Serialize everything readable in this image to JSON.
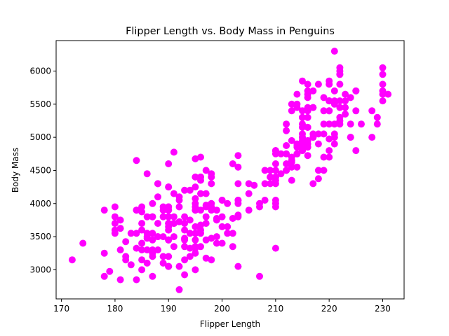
{
  "chart_data": {
    "type": "scatter",
    "title": "Flipper Length vs. Body Mass in Penguins",
    "xlabel": "Flipper Length",
    "ylabel": "Body Mass",
    "xlim": [
      169,
      234
    ],
    "ylim": [
      2560,
      6460
    ],
    "xticks": [
      170,
      180,
      190,
      200,
      210,
      220,
      230
    ],
    "yticks": [
      3000,
      3500,
      4000,
      4500,
      5000,
      5500,
      6000
    ],
    "grid": false,
    "legend": null,
    "marker_color": "#ff00ff",
    "marker_size": 8,
    "points": [
      [
        181,
        3750
      ],
      [
        186,
        3800
      ],
      [
        195,
        3250
      ],
      [
        193,
        3450
      ],
      [
        190,
        3650
      ],
      [
        181,
        3625
      ],
      [
        195,
        4675
      ],
      [
        193,
        3475
      ],
      [
        190,
        4250
      ],
      [
        186,
        3300
      ],
      [
        180,
        3700
      ],
      [
        182,
        3200
      ],
      [
        191,
        3800
      ],
      [
        198,
        4400
      ],
      [
        185,
        3700
      ],
      [
        195,
        3450
      ],
      [
        197,
        4500
      ],
      [
        184,
        3325
      ],
      [
        194,
        4200
      ],
      [
        174,
        3400
      ],
      [
        180,
        3600
      ],
      [
        189,
        3800
      ],
      [
        185,
        3950
      ],
      [
        180,
        3800
      ],
      [
        187,
        3800
      ],
      [
        183,
        3550
      ],
      [
        187,
        3200
      ],
      [
        172,
        3150
      ],
      [
        180,
        3950
      ],
      [
        178,
        3250
      ],
      [
        178,
        3900
      ],
      [
        188,
        3300
      ],
      [
        184,
        3900
      ],
      [
        195,
        3325
      ],
      [
        196,
        4150
      ],
      [
        190,
        3950
      ],
      [
        180,
        3550
      ],
      [
        181,
        3300
      ],
      [
        184,
        4650
      ],
      [
        182,
        3150
      ],
      [
        195,
        3900
      ],
      [
        186,
        3100
      ],
      [
        196,
        4400
      ],
      [
        185,
        3000
      ],
      [
        190,
        4600
      ],
      [
        182,
        3425
      ],
      [
        179,
        2975
      ],
      [
        190,
        3450
      ],
      [
        191,
        4150
      ],
      [
        186,
        3500
      ],
      [
        188,
        4300
      ],
      [
        190,
        3450
      ],
      [
        200,
        4050
      ],
      [
        187,
        2900
      ],
      [
        191,
        3700
      ],
      [
        186,
        3550
      ],
      [
        193,
        3800
      ],
      [
        181,
        2850
      ],
      [
        194,
        3750
      ],
      [
        185,
        3150
      ],
      [
        195,
        4400
      ],
      [
        185,
        3600
      ],
      [
        192,
        4050
      ],
      [
        184,
        2850
      ],
      [
        192,
        3950
      ],
      [
        195,
        3350
      ],
      [
        188,
        4100
      ],
      [
        190,
        3050
      ],
      [
        198,
        4450
      ],
      [
        190,
        3600
      ],
      [
        190,
        3900
      ],
      [
        196,
        3550
      ],
      [
        197,
        4150
      ],
      [
        190,
        3700
      ],
      [
        195,
        4250
      ],
      [
        191,
        3700
      ],
      [
        184,
        3900
      ],
      [
        187,
        3550
      ],
      [
        195,
        4000
      ],
      [
        189,
        3200
      ],
      [
        196,
        4700
      ],
      [
        187,
        3800
      ],
      [
        193,
        4200
      ],
      [
        191,
        3350
      ],
      [
        194,
        3550
      ],
      [
        190,
        3800
      ],
      [
        189,
        3500
      ],
      [
        189,
        3950
      ],
      [
        190,
        3600
      ],
      [
        202,
        3550
      ],
      [
        205,
        4300
      ],
      [
        185,
        3400
      ],
      [
        186,
        4450
      ],
      [
        187,
        3300
      ],
      [
        208,
        4300
      ],
      [
        190,
        3700
      ],
      [
        196,
        4350
      ],
      [
        178,
        2900
      ],
      [
        192,
        4100
      ],
      [
        192,
        3725
      ],
      [
        203,
        4725
      ],
      [
        183,
        3075
      ],
      [
        190,
        4250
      ],
      [
        193,
        2925
      ],
      [
        184,
        3550
      ],
      [
        199,
        3750
      ],
      [
        190,
        3900
      ],
      [
        197,
        3175
      ],
      [
        191,
        4775
      ],
      [
        203,
        3825
      ],
      [
        202,
        4600
      ],
      [
        194,
        3200
      ],
      [
        206,
        4275
      ],
      [
        189,
        3900
      ],
      [
        195,
        4075
      ],
      [
        207,
        2900
      ],
      [
        202,
        3775
      ],
      [
        193,
        3350
      ],
      [
        210,
        3325
      ],
      [
        198,
        3150
      ],
      [
        188,
        3500
      ],
      [
        190,
        3450
      ],
      [
        185,
        3875
      ],
      [
        190,
        3050
      ],
      [
        201,
        4000
      ],
      [
        187,
        3275
      ],
      [
        188,
        4300
      ],
      [
        203,
        3050
      ],
      [
        187,
        4000
      ],
      [
        194,
        3325
      ],
      [
        191,
        3500
      ],
      [
        190,
        3200
      ],
      [
        188,
        3500
      ],
      [
        189,
        3100
      ],
      [
        186,
        3475
      ],
      [
        193,
        3150
      ],
      [
        191,
        3700
      ],
      [
        192,
        3050
      ],
      [
        198,
        3475
      ],
      [
        190,
        3050
      ],
      [
        185,
        3300
      ],
      [
        195,
        3550
      ],
      [
        190,
        3950
      ],
      [
        195,
        3900
      ],
      [
        199,
        3500
      ],
      [
        211,
        4450
      ],
      [
        217,
        5700
      ],
      [
        221,
        6300
      ],
      [
        216,
        5700
      ],
      [
        230,
        5800
      ],
      [
        209,
        4400
      ],
      [
        215,
        5400
      ],
      [
        210,
        4750
      ],
      [
        209,
        4300
      ],
      [
        214,
        5650
      ],
      [
        209,
        4500
      ],
      [
        214,
        5500
      ],
      [
        216,
        5150
      ],
      [
        213,
        4650
      ],
      [
        215,
        5200
      ],
      [
        210,
        4800
      ],
      [
        215,
        5300
      ],
      [
        210,
        4350
      ],
      [
        216,
        5650
      ],
      [
        215,
        5150
      ],
      [
        210,
        4800
      ],
      [
        220,
        5550
      ],
      [
        222,
        5950
      ],
      [
        209,
        4400
      ],
      [
        215,
        5300
      ],
      [
        210,
        4500
      ],
      [
        218,
        5800
      ],
      [
        215,
        4800
      ],
      [
        213,
        5500
      ],
      [
        220,
        5400
      ],
      [
        213,
        4550
      ],
      [
        220,
        5200
      ],
      [
        215,
        4800
      ],
      [
        214,
        4850
      ],
      [
        216,
        5150
      ],
      [
        214,
        4750
      ],
      [
        212,
        4875
      ],
      [
        216,
        5300
      ],
      [
        220,
        5550
      ],
      [
        214,
        4900
      ],
      [
        215,
        5000
      ],
      [
        215,
        5000
      ],
      [
        220,
        5800
      ],
      [
        216,
        4900
      ],
      [
        217,
        5050
      ],
      [
        221,
        5000
      ],
      [
        219,
        5600
      ],
      [
        212,
        4500
      ],
      [
        222,
        5550
      ],
      [
        214,
        4875
      ],
      [
        221,
        5050
      ],
      [
        218,
        5050
      ],
      [
        222,
        5250
      ],
      [
        216,
        5400
      ],
      [
        224,
        5200
      ],
      [
        228,
        5400
      ],
      [
        216,
        5800
      ],
      [
        223,
        5650
      ],
      [
        213,
        4700
      ],
      [
        222,
        5800
      ],
      [
        217,
        5000
      ],
      [
        220,
        5850
      ],
      [
        210,
        4400
      ],
      [
        225,
        5400
      ],
      [
        208,
        4500
      ],
      [
        215,
        5050
      ],
      [
        224,
        5000
      ],
      [
        216,
        4725
      ],
      [
        225,
        5700
      ],
      [
        212,
        5200
      ],
      [
        223,
        5550
      ],
      [
        218,
        4900
      ],
      [
        221,
        5550
      ],
      [
        219,
        5050
      ],
      [
        226,
        5200
      ],
      [
        230,
        5700
      ],
      [
        223,
        5350
      ],
      [
        222,
        5200
      ],
      [
        220,
        4800
      ],
      [
        219,
        5400
      ],
      [
        230,
        5650
      ],
      [
        215,
        4950
      ],
      [
        212,
        5100
      ],
      [
        222,
        6000
      ],
      [
        229,
        5200
      ],
      [
        222,
        5950
      ],
      [
        213,
        4950
      ],
      [
        221,
        5700
      ],
      [
        222,
        6050
      ],
      [
        210,
        4600
      ],
      [
        217,
        5450
      ],
      [
        213,
        5400
      ],
      [
        228,
        5000
      ],
      [
        214,
        5450
      ],
      [
        217,
        5000
      ],
      [
        213,
        4625
      ],
      [
        230,
        5550
      ],
      [
        221,
        5500
      ],
      [
        214,
        4750
      ],
      [
        223,
        5450
      ],
      [
        221,
        4900
      ],
      [
        222,
        5300
      ],
      [
        220,
        5550
      ],
      [
        216,
        5450
      ],
      [
        212,
        4750
      ],
      [
        220,
        5400
      ],
      [
        225,
        5700
      ],
      [
        213,
        4350
      ],
      [
        216,
        5600
      ],
      [
        219,
        4500
      ],
      [
        215,
        4850
      ],
      [
        230,
        5950
      ],
      [
        231,
        5650
      ],
      [
        216,
        4950
      ],
      [
        217,
        5450
      ],
      [
        221,
        5200
      ],
      [
        224,
        5600
      ],
      [
        220,
        4700
      ],
      [
        222,
        5450
      ],
      [
        219,
        5200
      ],
      [
        220,
        4975
      ],
      [
        211,
        4750
      ],
      [
        229,
        5300
      ],
      [
        217,
        4300
      ],
      [
        230,
        6050
      ],
      [
        218,
        4375
      ],
      [
        215,
        5850
      ],
      [
        210,
        4000
      ],
      [
        215,
        4900
      ],
      [
        203,
        4550
      ],
      [
        225,
        4800
      ],
      [
        219,
        4700
      ],
      [
        218,
        4500
      ],
      [
        224,
        5000
      ],
      [
        197,
        3950
      ],
      [
        201,
        3650
      ],
      [
        195,
        3000
      ],
      [
        197,
        3700
      ],
      [
        197,
        3800
      ],
      [
        199,
        3400
      ],
      [
        196,
        3675
      ],
      [
        195,
        3650
      ],
      [
        197,
        3975
      ],
      [
        203,
        4050
      ],
      [
        207,
        4000
      ],
      [
        192,
        2700
      ],
      [
        201,
        3550
      ],
      [
        196,
        3600
      ],
      [
        203,
        4000
      ],
      [
        200,
        4050
      ],
      [
        199,
        3775
      ],
      [
        193,
        3600
      ],
      [
        203,
        4300
      ],
      [
        193,
        3700
      ],
      [
        196,
        3350
      ],
      [
        187,
        3250
      ],
      [
        197,
        3450
      ],
      [
        198,
        3950
      ],
      [
        196,
        3900
      ],
      [
        205,
        3900
      ],
      [
        200,
        3400
      ],
      [
        195,
        3950
      ],
      [
        202,
        3350
      ],
      [
        198,
        3900
      ],
      [
        198,
        4000
      ],
      [
        200,
        3650
      ],
      [
        203,
        4050
      ],
      [
        203,
        3800
      ],
      [
        196,
        4400
      ],
      [
        188,
        3700
      ],
      [
        199,
        3900
      ],
      [
        200,
        3800
      ],
      [
        205,
        4150
      ],
      [
        187,
        3450
      ],
      [
        198,
        4300
      ],
      [
        212,
        4500
      ],
      [
        210,
        4400
      ],
      [
        208,
        4050
      ],
      [
        207,
        3950
      ],
      [
        212,
        4600
      ],
      [
        210,
        4300
      ],
      [
        214,
        4550
      ],
      [
        210,
        4050
      ],
      [
        210,
        3950
      ],
      [
        216,
        4850
      ]
    ]
  }
}
